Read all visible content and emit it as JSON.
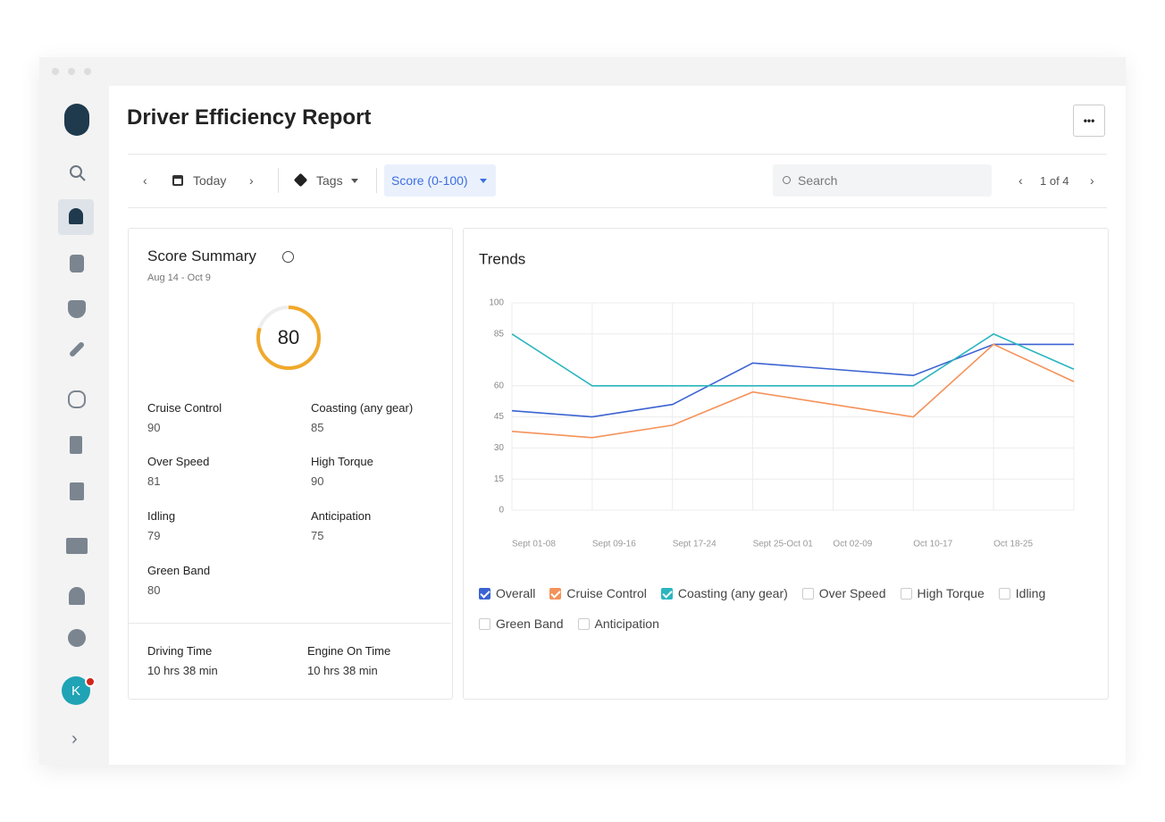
{
  "header": {
    "title": "Driver Efficiency Report",
    "more": "•••"
  },
  "toolbar": {
    "date": "Today",
    "tags": "Tags",
    "filter": "Score (0-100)",
    "search": "Search",
    "pagination": "1 of 4"
  },
  "summary": {
    "title": "Score Summary",
    "range": "Aug 14 - Oct 9",
    "score": 80,
    "score_max": 100,
    "metrics": [
      {
        "label": "Cruise Control",
        "value": "90"
      },
      {
        "label": "Coasting (any gear)",
        "value": "85"
      },
      {
        "label": "Over Speed",
        "value": "81"
      },
      {
        "label": "High Torque",
        "value": "90"
      },
      {
        "label": "Idling",
        "value": "79"
      },
      {
        "label": "Anticipation",
        "value": "75"
      },
      {
        "label": "Green Band",
        "value": "80"
      }
    ],
    "footer": [
      {
        "label": "Driving Time",
        "value": "10 hrs 38 min"
      },
      {
        "label": "Engine On Time",
        "value": "10 hrs 38 min"
      }
    ]
  },
  "user": {
    "initial": "K"
  },
  "chart_data": {
    "type": "line",
    "title": "Trends",
    "categories": [
      "Sept 01-08",
      "Sept 09-16",
      "Sept 17-24",
      "Sept 25-Oct 01",
      "Oct 02-09",
      "Oct 10-17",
      "Oct 18-25",
      null
    ],
    "series": [
      {
        "name": "Overall",
        "color": "#3b63d1",
        "values": [
          48,
          45,
          51,
          71,
          68,
          65,
          80,
          80
        ]
      },
      {
        "name": "Cruise Control",
        "color": "#f4925a",
        "values": [
          38,
          35,
          41,
          57,
          51,
          45,
          80,
          62
        ]
      },
      {
        "name": "Coasting (any gear)",
        "color": "#2bb5bf",
        "values": [
          85,
          60,
          60,
          60,
          60,
          60,
          85,
          68
        ]
      }
    ],
    "hidden_series": [
      "Over Speed",
      "High Torque",
      "Idling",
      "Green Band",
      "Anticipation"
    ],
    "ylim": [
      0,
      100
    ],
    "yticks": [
      0,
      15,
      30,
      45,
      60,
      85,
      100
    ],
    "grid": true
  }
}
